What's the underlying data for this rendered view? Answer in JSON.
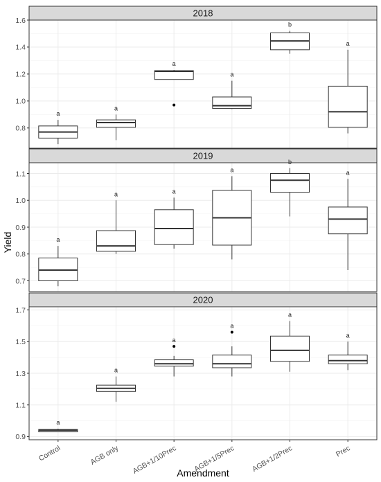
{
  "chart_data": {
    "type": "boxplot",
    "xlabel": "Amendment",
    "ylabel": "Yield",
    "categories": [
      "Control",
      "AGB only",
      "AGB+1/10Prec",
      "AGB+1/5Prec",
      "AGB+1/2Prec",
      "Prec"
    ],
    "grid": true,
    "colors": {
      "strip_fill": "#d9d9d9",
      "border": "#333333",
      "grid": "#ebebeb",
      "box": "#333333"
    },
    "panels": [
      {
        "strip": "2018",
        "ylim": [
          0.65,
          1.6
        ],
        "yticks": [
          0.8,
          1.0,
          1.2,
          1.4,
          1.6
        ],
        "ytick_labels": [
          "0.8",
          "1.0",
          "1.2",
          "1.4",
          "1.6"
        ],
        "boxes": [
          {
            "min": 0.68,
            "q1": 0.725,
            "median": 0.77,
            "q3": 0.815,
            "max": 0.86,
            "outliers": [],
            "sig": "a"
          },
          {
            "min": 0.71,
            "q1": 0.805,
            "median": 0.84,
            "q3": 0.86,
            "max": 0.9,
            "outliers": [],
            "sig": "a"
          },
          {
            "min": 1.16,
            "q1": 1.16,
            "median": 1.22,
            "q3": 1.225,
            "max": 1.23,
            "outliers": [
              0.97
            ],
            "sig": "a"
          },
          {
            "min": 0.94,
            "q1": 0.945,
            "median": 0.965,
            "q3": 1.03,
            "max": 1.15,
            "outliers": [],
            "sig": "a"
          },
          {
            "min": 1.35,
            "q1": 1.38,
            "median": 1.445,
            "q3": 1.505,
            "max": 1.52,
            "outliers": [],
            "sig": "b"
          },
          {
            "min": 0.76,
            "q1": 0.805,
            "median": 0.92,
            "q3": 1.11,
            "max": 1.38,
            "outliers": [],
            "sig": "a"
          }
        ]
      },
      {
        "strip": "2019",
        "ylim": [
          0.66,
          1.14
        ],
        "yticks": [
          0.7,
          0.8,
          0.9,
          1.0,
          1.1
        ],
        "ytick_labels": [
          "0.7",
          "0.8",
          "0.9",
          "1.0",
          "1.1"
        ],
        "boxes": [
          {
            "min": 0.68,
            "q1": 0.7,
            "median": 0.74,
            "q3": 0.785,
            "max": 0.83,
            "outliers": [],
            "sig": "a"
          },
          {
            "min": 0.8,
            "q1": 0.81,
            "median": 0.83,
            "q3": 0.887,
            "max": 1.0,
            "outliers": [],
            "sig": "a"
          },
          {
            "min": 0.82,
            "q1": 0.835,
            "median": 0.895,
            "q3": 0.965,
            "max": 1.01,
            "outliers": [],
            "sig": "a"
          },
          {
            "min": 0.78,
            "q1": 0.833,
            "median": 0.935,
            "q3": 1.037,
            "max": 1.09,
            "outliers": [],
            "sig": "a"
          },
          {
            "min": 0.94,
            "q1": 1.03,
            "median": 1.075,
            "q3": 1.1,
            "max": 1.12,
            "outliers": [],
            "sig": "b"
          },
          {
            "min": 0.74,
            "q1": 0.875,
            "median": 0.93,
            "q3": 0.975,
            "max": 1.08,
            "outliers": [],
            "sig": "a"
          }
        ]
      },
      {
        "strip": "2020",
        "ylim": [
          0.88,
          1.72
        ],
        "yticks": [
          0.9,
          1.1,
          1.3,
          1.5,
          1.7
        ],
        "ytick_labels": [
          "0.9",
          "1.1",
          "1.3",
          "1.5",
          "1.7"
        ],
        "boxes": [
          {
            "min": 0.93,
            "q1": 0.93,
            "median": 0.94,
            "q3": 0.945,
            "max": 0.95,
            "outliers": [],
            "sig": "a"
          },
          {
            "min": 1.12,
            "q1": 1.185,
            "median": 1.205,
            "q3": 1.225,
            "max": 1.28,
            "outliers": [],
            "sig": "a"
          },
          {
            "min": 1.28,
            "q1": 1.345,
            "median": 1.36,
            "q3": 1.385,
            "max": 1.41,
            "outliers": [
              1.47
            ],
            "sig": "a"
          },
          {
            "min": 1.28,
            "q1": 1.335,
            "median": 1.36,
            "q3": 1.415,
            "max": 1.47,
            "outliers": [
              1.56
            ],
            "sig": "a"
          },
          {
            "min": 1.31,
            "q1": 1.375,
            "median": 1.445,
            "q3": 1.535,
            "max": 1.63,
            "outliers": [],
            "sig": "a"
          },
          {
            "min": 1.32,
            "q1": 1.36,
            "median": 1.38,
            "q3": 1.415,
            "max": 1.5,
            "outliers": [],
            "sig": "a"
          }
        ]
      }
    ]
  }
}
